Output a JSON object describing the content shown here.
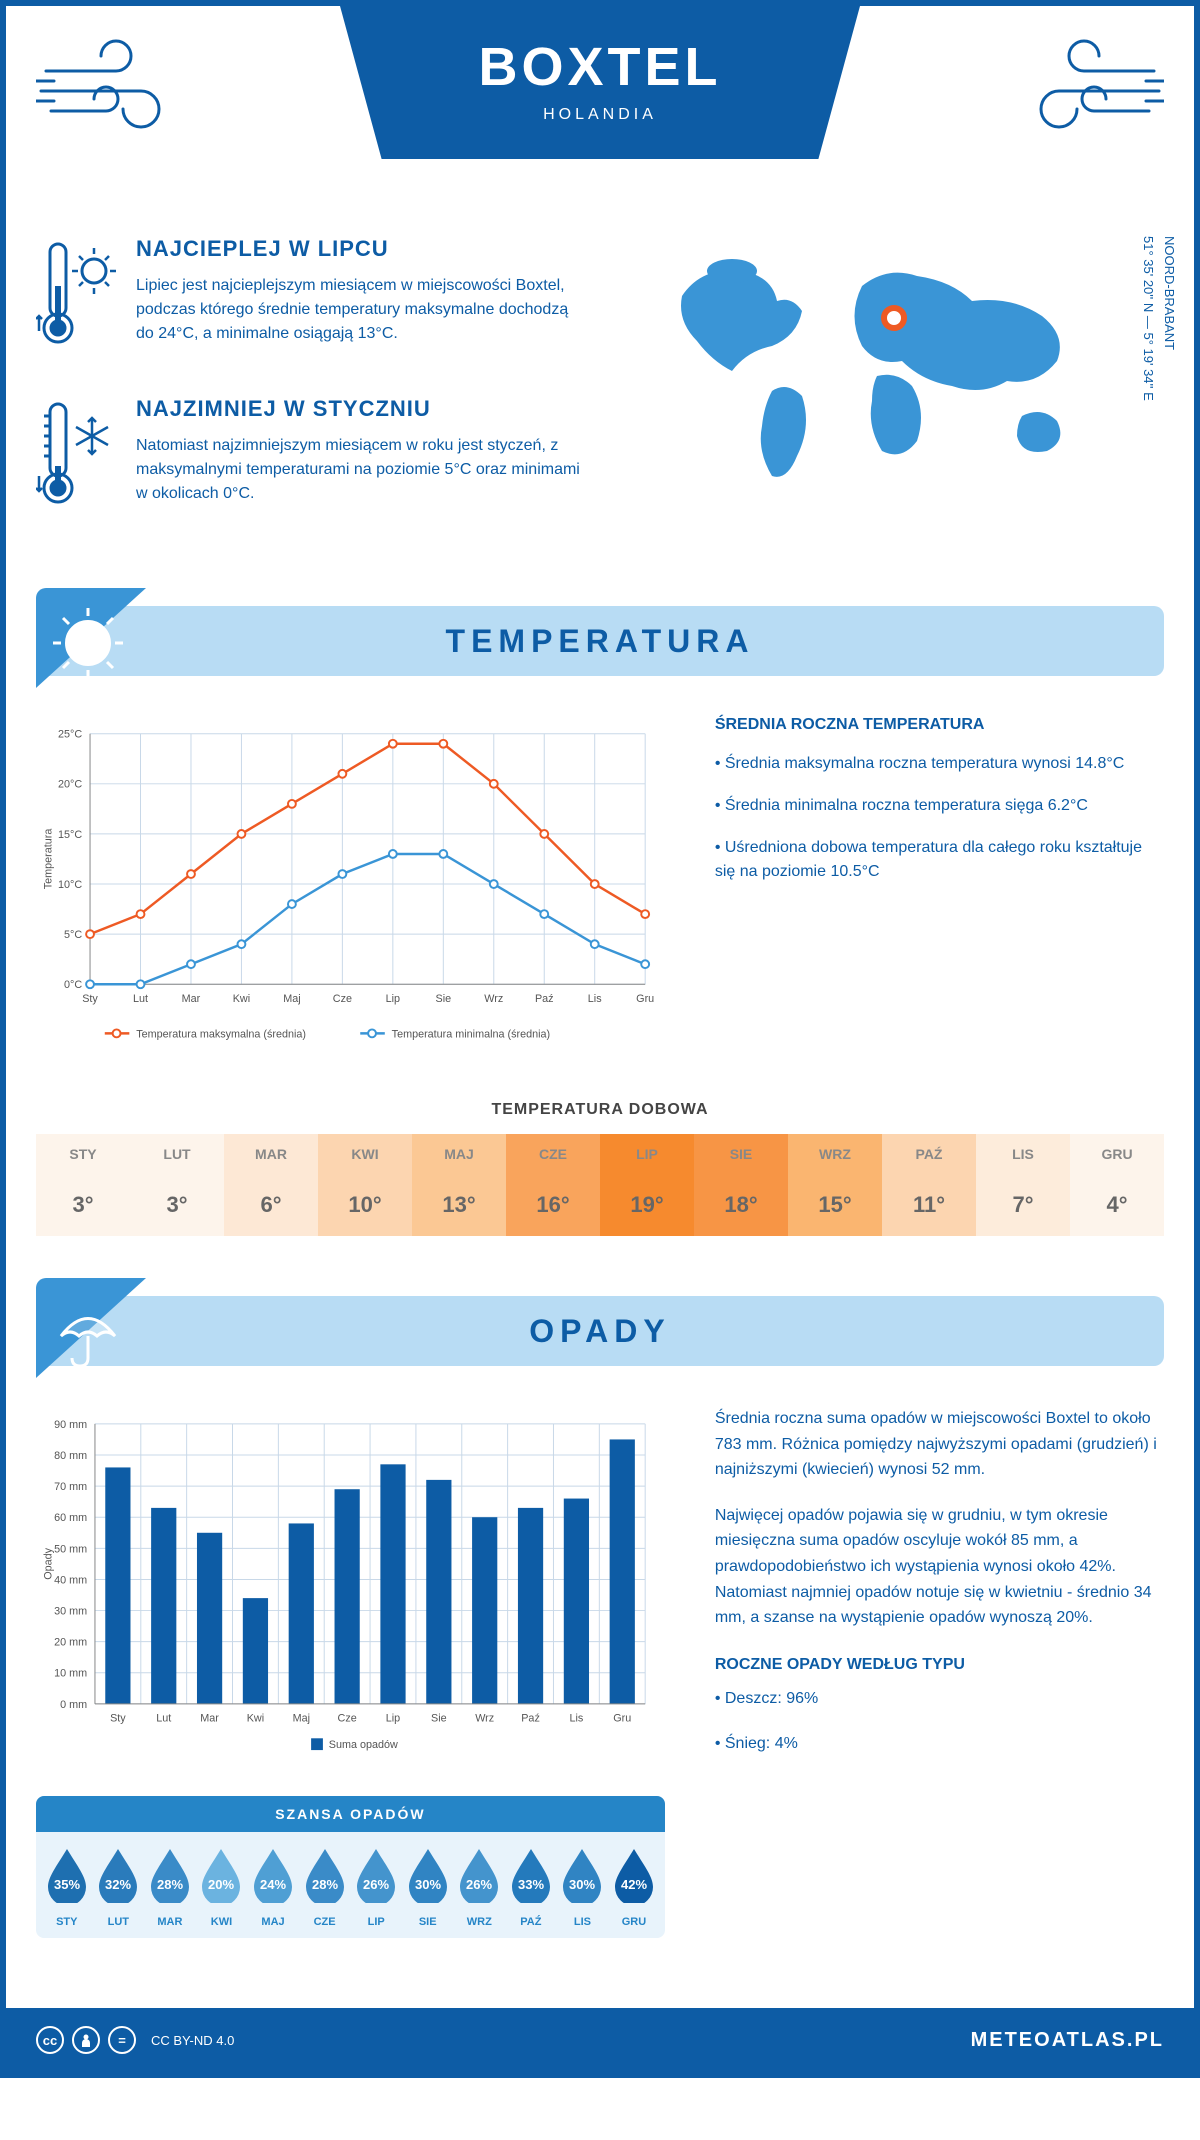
{
  "header": {
    "city": "BOXTEL",
    "country": "HOLANDIA"
  },
  "coords": {
    "region": "NOORD-BRABANT",
    "lat": "51° 35' 20'' N",
    "lon": "5° 19' 34'' E"
  },
  "warmest": {
    "title": "NAJCIEPLEJ W LIPCU",
    "text": "Lipiec jest najcieplejszym miesiącem w miejscowości Boxtel, podczas którego średnie temperatury maksymalne dochodzą do 24°C, a minimalne osiągają 13°C."
  },
  "coldest": {
    "title": "NAJZIMNIEJ W STYCZNIU",
    "text": "Natomiast najzimniejszym miesiącem w roku jest styczeń, z maksymalnymi temperaturami na poziomie 5°C oraz minimami w okolicach 0°C."
  },
  "temp_section": {
    "title": "TEMPERATURA",
    "side_title": "ŚREDNIA ROCZNA TEMPERATURA",
    "bullet1": "• Średnia maksymalna roczna temperatura wynosi 14.8°C",
    "bullet2": "• Średnia minimalna roczna temperatura sięga 6.2°C",
    "bullet3": "• Uśredniona dobowa temperatura dla całego roku kształtuje się na poziomie 10.5°C"
  },
  "temp_chart": {
    "type": "line",
    "months": [
      "Sty",
      "Lut",
      "Mar",
      "Kwi",
      "Maj",
      "Cze",
      "Lip",
      "Sie",
      "Wrz",
      "Paź",
      "Lis",
      "Gru"
    ],
    "ylabel": "Temperatura",
    "ylim": [
      0,
      25
    ],
    "ytick_step": 5,
    "ytick_labels": [
      "0°C",
      "5°C",
      "10°C",
      "15°C",
      "20°C",
      "25°C"
    ],
    "series": {
      "max": {
        "label": "Temperatura maksymalna (średnia)",
        "color": "#ee5a24",
        "values": [
          5,
          7,
          11,
          15,
          18,
          21,
          24,
          24,
          20,
          15,
          10,
          7
        ]
      },
      "min": {
        "label": "Temperatura minimalna (średnia)",
        "color": "#3a95d6",
        "values": [
          0,
          0,
          2,
          4,
          8,
          11,
          13,
          13,
          10,
          7,
          4,
          2
        ]
      }
    },
    "grid_color": "#c8d8e8",
    "background": "#ffffff"
  },
  "daily_temp": {
    "title": "TEMPERATURA DOBOWA",
    "months": [
      "STY",
      "LUT",
      "MAR",
      "KWI",
      "MAJ",
      "CZE",
      "LIP",
      "SIE",
      "WRZ",
      "PAŹ",
      "LIS",
      "GRU"
    ],
    "values": [
      "3°",
      "3°",
      "6°",
      "10°",
      "13°",
      "16°",
      "19°",
      "18°",
      "15°",
      "11°",
      "7°",
      "4°"
    ],
    "colors": [
      "#fdf4eb",
      "#fdf4eb",
      "#fde8d5",
      "#fcd5b0",
      "#fbc894",
      "#f9a45c",
      "#f68a2e",
      "#f79545",
      "#fab570",
      "#fcd5b0",
      "#fdecdb",
      "#fdf4eb"
    ]
  },
  "precip_section": {
    "title": "OPADY",
    "para1": "Średnia roczna suma opadów w miejscowości Boxtel to około 783 mm. Różnica pomiędzy najwyższymi opadami (grudzień) i najniższymi (kwiecień) wynosi 52 mm.",
    "para2": "Najwięcej opadów pojawia się w grudniu, w tym okresie miesięczna suma opadów oscyluje wokół 85 mm, a prawdopodobieństwo ich wystąpienia wynosi około 42%. Natomiast najmniej opadów notuje się w kwietniu - średnio 34 mm, a szanse na wystąpienie opadów wynoszą 20%.",
    "type_title": "ROCZNE OPADY WEDŁUG TYPU",
    "type1": "• Deszcz: 96%",
    "type2": "• Śnieg: 4%"
  },
  "precip_chart": {
    "type": "bar",
    "months": [
      "Sty",
      "Lut",
      "Mar",
      "Kwi",
      "Maj",
      "Cze",
      "Lip",
      "Sie",
      "Wrz",
      "Paź",
      "Lis",
      "Gru"
    ],
    "ylabel": "Opady",
    "ylim": [
      0,
      90
    ],
    "ytick_step": 10,
    "ytick_labels": [
      "0 mm",
      "10 mm",
      "20 mm",
      "30 mm",
      "40 mm",
      "50 mm",
      "60 mm",
      "70 mm",
      "80 mm",
      "90 mm"
    ],
    "values": [
      76,
      63,
      55,
      34,
      58,
      69,
      77,
      72,
      60,
      63,
      66,
      85
    ],
    "bar_color": "#0d5ca5",
    "legend": "Suma opadów",
    "grid_color": "#c8d8e8"
  },
  "chance": {
    "title": "SZANSA OPADÓW",
    "months": [
      "STY",
      "LUT",
      "MAR",
      "KWI",
      "MAJ",
      "CZE",
      "LIP",
      "SIE",
      "WRZ",
      "PAŹ",
      "LIS",
      "GRU"
    ],
    "values": [
      "35%",
      "32%",
      "28%",
      "20%",
      "24%",
      "28%",
      "26%",
      "30%",
      "26%",
      "33%",
      "30%",
      "42%"
    ],
    "colors": [
      "#1e6fb0",
      "#2a7bbb",
      "#3a8bc8",
      "#6bb3e0",
      "#4f9fd4",
      "#3a8bc8",
      "#4494cd",
      "#3084c3",
      "#4494cd",
      "#247abc",
      "#3084c3",
      "#0d5ca5"
    ]
  },
  "footer": {
    "license": "CC BY-ND 4.0",
    "site": "METEOATLAS.PL"
  },
  "palette": {
    "primary": "#0d5ca5",
    "light": "#b8dcf4",
    "mid": "#3a95d6"
  }
}
